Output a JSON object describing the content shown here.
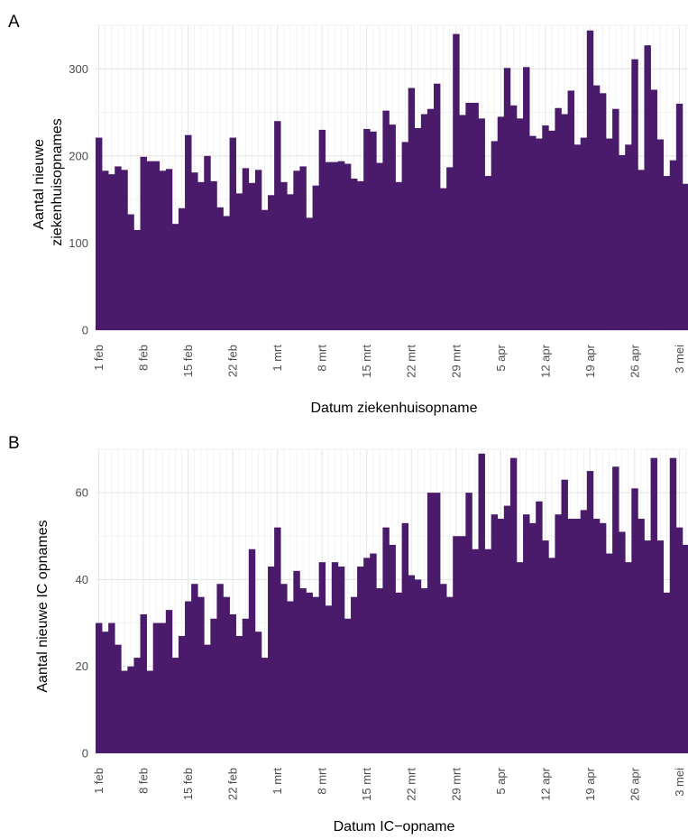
{
  "colors": {
    "bar": "#4a1a6b",
    "grid_major": "#e6e6e6",
    "grid_minor": "#f1f1f1",
    "panel_bg": "#ffffff"
  },
  "chart_data": [
    {
      "type": "bar",
      "panel_label": "A",
      "xlabel": "Datum ziekenhuisopname",
      "ylabel_lines": [
        "Aantal nieuwe",
        "ziekenhuisopnames"
      ],
      "ylim": [
        0,
        350
      ],
      "yticks": [
        0,
        100,
        200,
        300
      ],
      "start_date": "1 feb",
      "xtick_labels": [
        "1 feb",
        "8 feb",
        "15 feb",
        "22 feb",
        "1 mrt",
        "8 mrt",
        "15 mrt",
        "22 mrt",
        "29 mrt",
        "5 apr",
        "12 apr",
        "19 apr",
        "26 apr",
        "3 mei"
      ],
      "grid": true,
      "values": [
        221,
        183,
        179,
        188,
        184,
        133,
        115,
        199,
        194,
        194,
        183,
        185,
        122,
        140,
        224,
        181,
        170,
        200,
        171,
        141,
        131,
        221,
        157,
        186,
        169,
        184,
        138,
        155,
        240,
        170,
        156,
        183,
        188,
        129,
        166,
        230,
        193,
        193,
        194,
        191,
        174,
        171,
        231,
        228,
        192,
        252,
        236,
        170,
        216,
        278,
        232,
        248,
        254,
        283,
        163,
        187,
        340,
        247,
        261,
        261,
        243,
        177,
        217,
        245,
        301,
        258,
        243,
        302,
        223,
        220,
        235,
        229,
        255,
        248,
        275,
        213,
        221,
        344,
        281,
        272,
        220,
        254,
        201,
        213,
        311,
        184,
        327,
        276,
        219,
        177,
        195,
        260,
        168
      ]
    },
    {
      "type": "bar",
      "panel_label": "B",
      "xlabel": "Datum IC−opname",
      "ylabel_lines": [
        "Aantal nieuwe IC opnames"
      ],
      "ylim": [
        0,
        70
      ],
      "yticks": [
        0,
        20,
        40,
        60
      ],
      "start_date": "1 feb",
      "xtick_labels": [
        "1 feb",
        "8 feb",
        "15 feb",
        "22 feb",
        "1 mrt",
        "8 mrt",
        "15 mrt",
        "22 mrt",
        "29 mrt",
        "5 apr",
        "12 apr",
        "19 apr",
        "26 apr",
        "3 mei"
      ],
      "grid": true,
      "values": [
        30,
        28,
        30,
        25,
        19,
        20,
        22,
        32,
        19,
        30,
        30,
        33,
        22,
        27,
        35,
        39,
        36,
        25,
        31,
        39,
        36,
        32,
        27,
        31,
        47,
        28,
        22,
        43,
        52,
        39,
        35,
        42,
        38,
        37,
        36,
        44,
        34,
        44,
        43,
        31,
        36,
        43,
        45,
        46,
        38,
        52,
        48,
        37,
        53,
        41,
        40,
        38,
        60,
        60,
        39,
        36,
        50,
        50,
        60,
        47,
        69,
        47,
        55,
        54,
        57,
        68,
        44,
        55,
        53,
        58,
        49,
        45,
        55,
        63,
        54,
        54,
        56,
        65,
        54,
        53,
        46,
        66,
        51,
        44,
        61,
        54,
        49,
        68,
        49,
        37,
        68,
        52,
        48
      ]
    }
  ]
}
